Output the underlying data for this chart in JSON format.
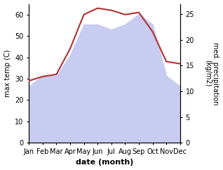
{
  "months": [
    "Jan",
    "Feb",
    "Mar",
    "Apr",
    "May",
    "Jun",
    "Jul",
    "Aug",
    "Sep",
    "Oct",
    "Nov",
    "Dec"
  ],
  "month_indices": [
    1,
    2,
    3,
    4,
    5,
    6,
    7,
    8,
    9,
    10,
    11,
    12
  ],
  "temp_max": [
    29,
    31,
    32,
    44,
    60,
    63,
    62,
    60,
    61,
    52,
    38,
    37
  ],
  "precipitation": [
    11,
    13,
    13,
    17,
    23,
    23,
    22,
    23,
    25,
    23,
    13,
    11
  ],
  "temp_ylim": [
    0,
    65
  ],
  "precip_ylim": [
    0,
    27
  ],
  "temp_yticks": [
    0,
    10,
    20,
    30,
    40,
    50,
    60
  ],
  "precip_yticks": [
    0,
    5,
    10,
    15,
    20,
    25
  ],
  "temp_color": "#b03030",
  "precip_fill_color": "#c8ccf0",
  "xlabel": "date (month)",
  "ylabel_left": "max temp (C)",
  "ylabel_right": "med. precipitation\n(kg/m2)",
  "bg_color": "#ffffff",
  "font_size": 7,
  "label_font_size": 8
}
